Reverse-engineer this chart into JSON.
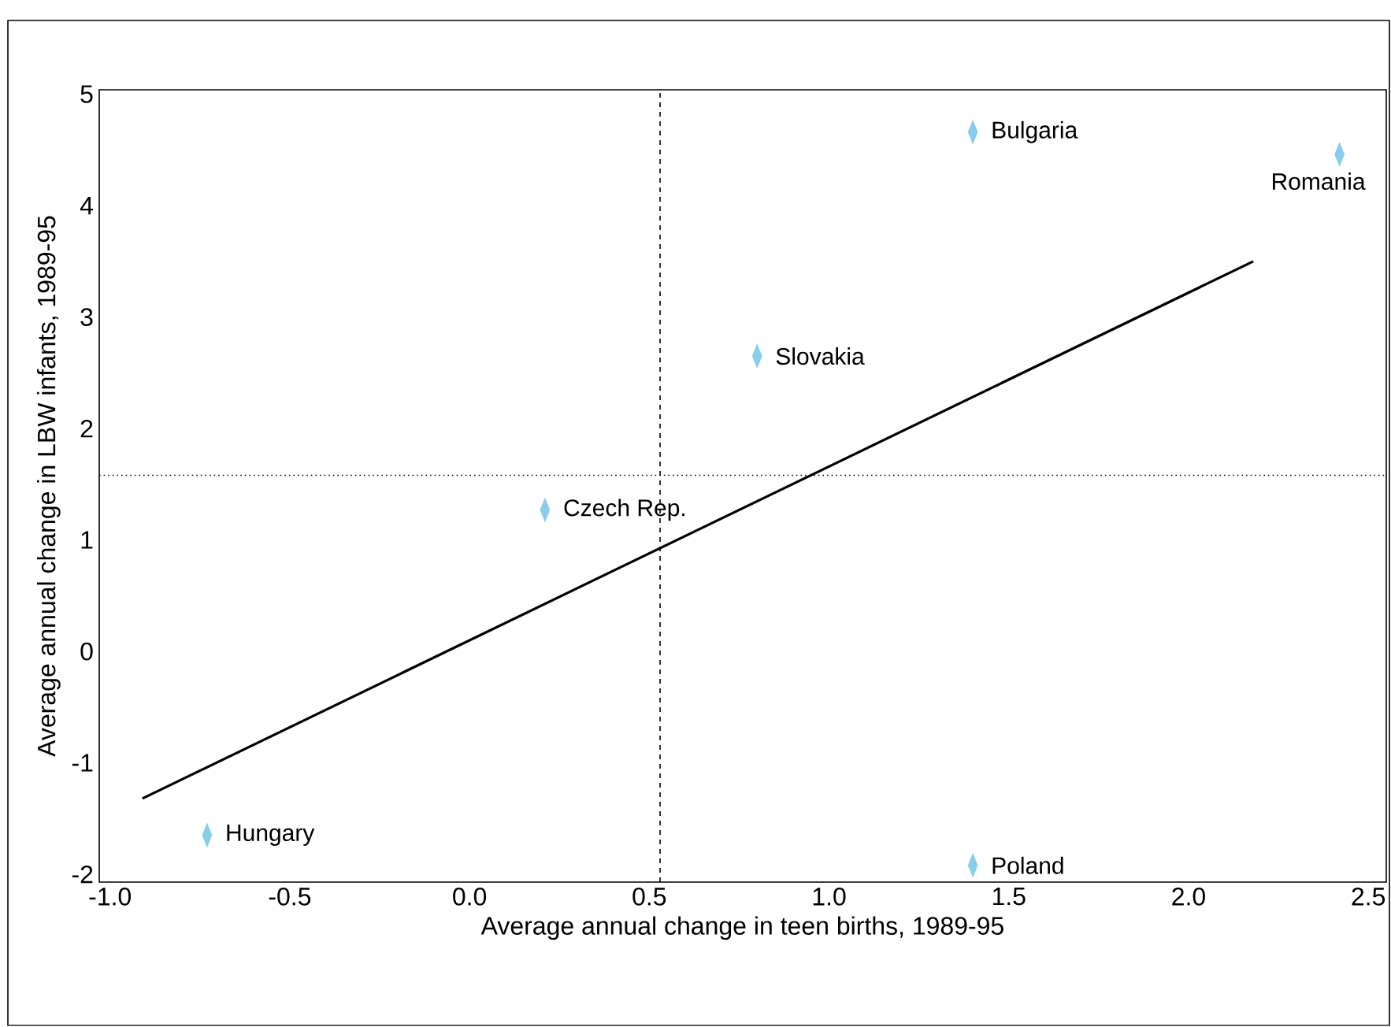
{
  "chart_data": {
    "type": "scatter",
    "xlabel": "Average annual change in teen births, 1989-95",
    "ylabel": "Average annual change in LBW infants, 1989-95",
    "xlim": [
      -1.03,
      2.55
    ],
    "ylim": [
      -2.07,
      5.04
    ],
    "xticks": [
      {
        "value": -1.0,
        "label": "-1.0"
      },
      {
        "value": -0.5,
        "label": "-0.5"
      },
      {
        "value": 0.0,
        "label": "0.0"
      },
      {
        "value": 0.5,
        "label": "0.5"
      },
      {
        "value": 1.0,
        "label": "1.0"
      },
      {
        "value": 1.5,
        "label": "1.5"
      },
      {
        "value": 2.0,
        "label": "2.0"
      },
      {
        "value": 2.5,
        "label": "2.5"
      }
    ],
    "yticks": [
      -2,
      -1,
      0,
      1,
      2,
      3,
      4,
      5
    ],
    "grid": false,
    "series": [
      {
        "color": "#87ceeb",
        "marker": "diamond",
        "x": [
          1.4,
          2.42,
          0.8,
          0.21,
          -0.73,
          1.4
        ],
        "values": [
          4.66,
          4.46,
          2.65,
          1.27,
          -1.65,
          -1.92
        ]
      },
      {
        "type": "line",
        "color": "#000000",
        "marker": "none",
        "line_style": "solid",
        "x": [
          -0.91,
          2.18
        ],
        "values": [
          -1.32,
          3.5
        ]
      }
    ],
    "ref_lines": [
      {
        "axis": "x",
        "value": 0.53,
        "color": "#000000",
        "line_style": "dashed"
      },
      {
        "axis": "y",
        "value": 1.58,
        "color": "#000000",
        "line_style": "dotted"
      }
    ],
    "annotations": [
      {
        "text": "Bulgaria",
        "x": 1.4,
        "y": 4.66
      },
      {
        "text": "Romania",
        "x": 2.42,
        "y": 4.46
      },
      {
        "text": "Slovakia",
        "x": 0.8,
        "y": 2.65
      },
      {
        "text": "Czech Rep.",
        "x": 0.21,
        "y": 1.27
      },
      {
        "text": "Hungary",
        "x": -0.73,
        "y": -1.65
      },
      {
        "text": "Poland",
        "x": 1.4,
        "y": -1.92
      }
    ]
  }
}
